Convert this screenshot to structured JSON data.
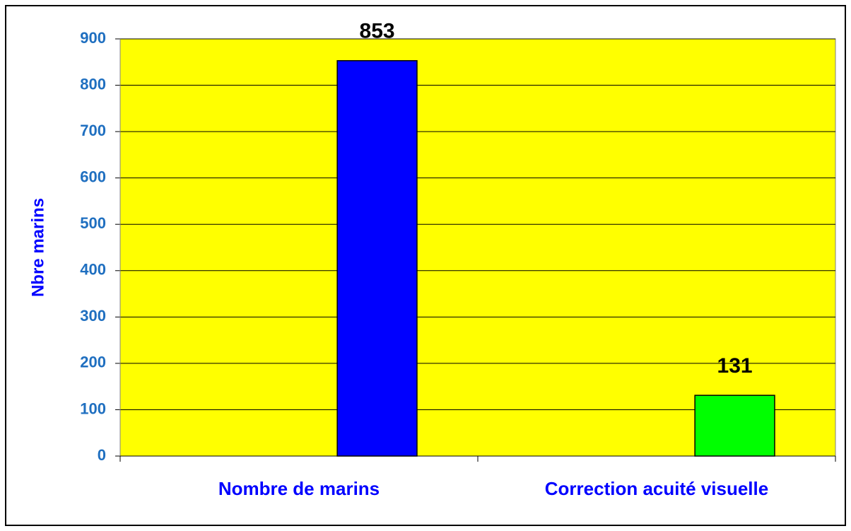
{
  "chart_data": {
    "type": "bar",
    "y_label": "Nbre marins",
    "categories": [
      "Nombre de marins",
      "Correction acuité visuelle"
    ],
    "values": [
      853,
      131
    ],
    "colors": [
      "#0000ff",
      "#00ff00"
    ],
    "ylim": [
      0,
      900
    ],
    "yticks": [
      0,
      100,
      200,
      300,
      400,
      500,
      600,
      700,
      800,
      900
    ],
    "grid": true,
    "data_labels": true
  }
}
